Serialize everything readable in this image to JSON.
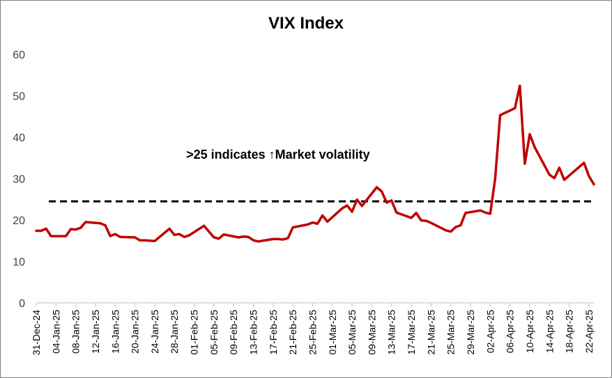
{
  "chart_data": {
    "type": "line",
    "title": "VIX Index",
    "xlabel": "",
    "ylabel": "",
    "ylim": [
      0,
      60
    ],
    "yticks": [
      0,
      10,
      20,
      30,
      40,
      50,
      60
    ],
    "grid": false,
    "legend": "none",
    "xticks": [
      "31-Dec-24",
      "04-Jan-25",
      "08-Jan-25",
      "12-Jan-25",
      "16-Jan-25",
      "20-Jan-25",
      "24-Jan-25",
      "28-Jan-25",
      "01-Feb-25",
      "05-Feb-25",
      "09-Feb-25",
      "13-Feb-25",
      "17-Feb-25",
      "21-Feb-25",
      "25-Feb-25",
      "01-Mar-25",
      "05-Mar-25",
      "09-Mar-25",
      "13-Mar-25",
      "17-Mar-25",
      "21-Mar-25",
      "25-Mar-25",
      "29-Mar-25",
      "02-Apr-25",
      "06-Apr-25",
      "10-Apr-25",
      "14-Apr-25",
      "18-Apr-25",
      "22-Apr-25"
    ],
    "x_range": [
      "2024-12-31",
      "2025-04-23"
    ],
    "series": [
      {
        "color": "#c00000",
        "points": [
          [
            "2024-12-31",
            17.4
          ],
          [
            "2025-01-01",
            17.4
          ],
          [
            "2025-01-02",
            17.9
          ],
          [
            "2025-01-03",
            16.1
          ],
          [
            "2025-01-06",
            16.1
          ],
          [
            "2025-01-07",
            17.8
          ],
          [
            "2025-01-08",
            17.7
          ],
          [
            "2025-01-09",
            18.1
          ],
          [
            "2025-01-10",
            19.5
          ],
          [
            "2025-01-13",
            19.2
          ],
          [
            "2025-01-14",
            18.7
          ],
          [
            "2025-01-15",
            16.1
          ],
          [
            "2025-01-16",
            16.6
          ],
          [
            "2025-01-17",
            15.9
          ],
          [
            "2025-01-20",
            15.8
          ],
          [
            "2025-01-21",
            15.1
          ],
          [
            "2025-01-22",
            15.1
          ],
          [
            "2025-01-23",
            15.0
          ],
          [
            "2025-01-24",
            14.9
          ],
          [
            "2025-01-27",
            17.9
          ],
          [
            "2025-01-28",
            16.4
          ],
          [
            "2025-01-29",
            16.6
          ],
          [
            "2025-01-30",
            15.9
          ],
          [
            "2025-01-31",
            16.3
          ],
          [
            "2025-02-03",
            18.6
          ],
          [
            "2025-02-04",
            17.2
          ],
          [
            "2025-02-05",
            15.8
          ],
          [
            "2025-02-06",
            15.5
          ],
          [
            "2025-02-07",
            16.5
          ],
          [
            "2025-02-10",
            15.8
          ],
          [
            "2025-02-11",
            16.0
          ],
          [
            "2025-02-12",
            15.9
          ],
          [
            "2025-02-13",
            15.1
          ],
          [
            "2025-02-14",
            14.8
          ],
          [
            "2025-02-17",
            15.4
          ],
          [
            "2025-02-18",
            15.4
          ],
          [
            "2025-02-19",
            15.3
          ],
          [
            "2025-02-20",
            15.6
          ],
          [
            "2025-02-21",
            18.2
          ],
          [
            "2025-02-24",
            18.9
          ],
          [
            "2025-02-25",
            19.4
          ],
          [
            "2025-02-26",
            19.1
          ],
          [
            "2025-02-27",
            21.1
          ],
          [
            "2025-02-28",
            19.6
          ],
          [
            "2025-03-03",
            22.8
          ],
          [
            "2025-03-04",
            23.5
          ],
          [
            "2025-03-05",
            22.0
          ],
          [
            "2025-03-06",
            24.9
          ],
          [
            "2025-03-07",
            23.4
          ],
          [
            "2025-03-10",
            27.9
          ],
          [
            "2025-03-11",
            26.9
          ],
          [
            "2025-03-12",
            24.2
          ],
          [
            "2025-03-13",
            24.7
          ],
          [
            "2025-03-14",
            21.8
          ],
          [
            "2025-03-17",
            20.5
          ],
          [
            "2025-03-18",
            21.7
          ],
          [
            "2025-03-19",
            19.9
          ],
          [
            "2025-03-20",
            19.8
          ],
          [
            "2025-03-21",
            19.3
          ],
          [
            "2025-03-24",
            17.5
          ],
          [
            "2025-03-25",
            17.2
          ],
          [
            "2025-03-26",
            18.3
          ],
          [
            "2025-03-27",
            18.7
          ],
          [
            "2025-03-28",
            21.7
          ],
          [
            "2025-03-31",
            22.3
          ],
          [
            "2025-04-01",
            21.8
          ],
          [
            "2025-04-02",
            21.5
          ],
          [
            "2025-04-03",
            30.0
          ],
          [
            "2025-04-04",
            45.3
          ],
          [
            "2025-04-07",
            47.0
          ],
          [
            "2025-04-08",
            52.4
          ],
          [
            "2025-04-09",
            33.6
          ],
          [
            "2025-04-10",
            40.7
          ],
          [
            "2025-04-11",
            37.6
          ],
          [
            "2025-04-14",
            30.9
          ],
          [
            "2025-04-15",
            30.1
          ],
          [
            "2025-04-16",
            32.6
          ],
          [
            "2025-04-17",
            29.7
          ],
          [
            "2025-04-21",
            33.8
          ],
          [
            "2025-04-22",
            30.6
          ],
          [
            "2025-04-23",
            28.6
          ]
        ]
      }
    ],
    "reference_line": {
      "y": 24.5,
      "style": "dashed",
      "color": "#000000"
    },
    "annotation": {
      "text": ">25 indicates ↑Market volatility",
      "x": "2025-02-18",
      "y": 34.8
    }
  }
}
